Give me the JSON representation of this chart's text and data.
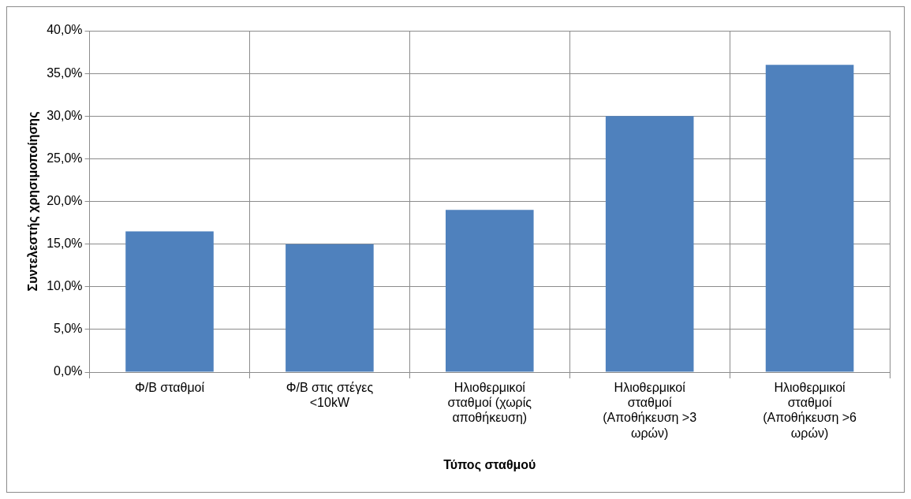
{
  "chart_data": {
    "type": "bar",
    "xlabel": "Τύπος σταθμού",
    "ylabel": "Συντελεστής χρησιμοποίησης",
    "categories": [
      "Φ/Β σταθμοί",
      "Φ/Β στις στέγες <10kW",
      "Ηλιοθερμικοί σταθμοί (χωρίς αποθήκευση)",
      "Ηλιοθερμικοί σταθμοί (Αποθήκευση >3 ωρών)",
      "Ηλιοθερμικοί σταθμοί (Αποθήκευση >6 ωρών)"
    ],
    "values": [
      16.5,
      15,
      19,
      30,
      36
    ],
    "color": "#4f81bd",
    "ylim": [
      0,
      40
    ],
    "yticks": [
      {
        "value": 0,
        "label": "0,0%"
      },
      {
        "value": 5,
        "label": "5,0%"
      },
      {
        "value": 10,
        "label": "10,0%"
      },
      {
        "value": 15,
        "label": "15,0%"
      },
      {
        "value": 20,
        "label": "20,0%"
      },
      {
        "value": 25,
        "label": "25,0%"
      },
      {
        "value": 30,
        "label": "30,0%"
      },
      {
        "value": 35,
        "label": "35,0%"
      },
      {
        "value": 40,
        "label": "40,0%"
      }
    ],
    "grid": true,
    "legend": false
  }
}
